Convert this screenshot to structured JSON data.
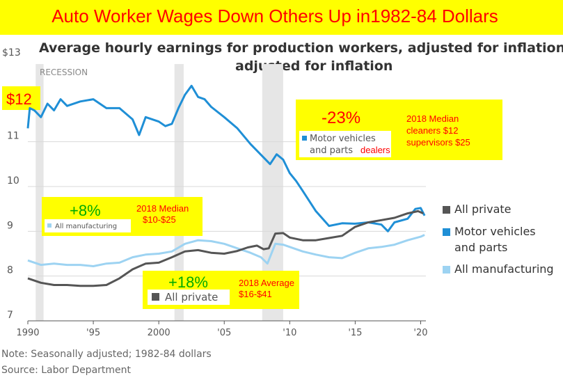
{
  "banner": {
    "title": "Auto Worker Wages Down  Others Up in1982-84 Dollars"
  },
  "chart_data": {
    "type": "line",
    "title": "Average hourly earnings for production workers, adjusted for inflation",
    "subtitle": "adjusted for inflation",
    "ylim": [
      7,
      13
    ],
    "xlim": [
      1990,
      2020.4
    ],
    "y_ticks": [
      7,
      8,
      9,
      10,
      11
    ],
    "y_top_label": "$13",
    "x_ticks": [
      {
        "value": 1990,
        "label": "1990"
      },
      {
        "value": 1995,
        "label": "'95"
      },
      {
        "value": 2000,
        "label": "2000"
      },
      {
        "value": 2005,
        "label": "'05"
      },
      {
        "value": 2010,
        "label": "'10"
      },
      {
        "value": 2015,
        "label": "'15"
      },
      {
        "value": 2020,
        "label": "'20"
      }
    ],
    "recession_label": "RECESSION",
    "recessions": [
      [
        1990.6,
        1991.2
      ],
      [
        2001.2,
        2001.9
      ],
      [
        2007.9,
        2009.5
      ]
    ],
    "series": [
      {
        "name": "All private",
        "color": "#555555",
        "x": [
          1990,
          1991,
          1992,
          1993,
          1994,
          1995,
          1996,
          1997,
          1998,
          1999,
          2000,
          2001,
          2002,
          2003,
          2004,
          2005,
          2006,
          2006.8,
          2007.5,
          2008,
          2008.4,
          2008.9,
          2009.5,
          2010,
          2011,
          2012,
          2013,
          2014,
          2015,
          2016,
          2017,
          2018,
          2019,
          2019.8,
          2020.2
        ],
        "y": [
          7.95,
          7.85,
          7.8,
          7.8,
          7.78,
          7.78,
          7.8,
          7.95,
          8.15,
          8.28,
          8.3,
          8.42,
          8.55,
          8.58,
          8.52,
          8.5,
          8.56,
          8.64,
          8.68,
          8.6,
          8.62,
          8.95,
          8.96,
          8.86,
          8.8,
          8.8,
          8.85,
          8.9,
          9.1,
          9.2,
          9.25,
          9.3,
          9.4,
          9.45,
          9.4
        ]
      },
      {
        "name": "Motor vehicles and parts",
        "color": "#1f8fd6",
        "x": [
          1990,
          1990.15,
          1990.5,
          1991,
          1991.5,
          1992,
          1992.5,
          1993,
          1994,
          1995,
          1996,
          1997,
          1998,
          1998.5,
          1999,
          2000,
          2000.5,
          2001,
          2001.5,
          2002,
          2002.5,
          2003,
          2003.5,
          2004,
          2005,
          2006,
          2007,
          2008,
          2008.5,
          2009,
          2009.5,
          2010,
          2010.5,
          2011,
          2012,
          2013,
          2014,
          2015,
          2016,
          2017,
          2017.5,
          2018,
          2019,
          2019.6,
          2020,
          2020.3
        ],
        "y": [
          11.3,
          11.75,
          11.7,
          11.55,
          11.85,
          11.7,
          11.95,
          11.8,
          11.9,
          11.95,
          11.75,
          11.75,
          11.5,
          11.15,
          11.55,
          11.45,
          11.35,
          11.4,
          11.75,
          12.05,
          12.25,
          12.0,
          11.95,
          11.78,
          11.55,
          11.3,
          10.95,
          10.65,
          10.5,
          10.72,
          10.6,
          10.3,
          10.12,
          9.9,
          9.45,
          9.12,
          9.18,
          9.17,
          9.2,
          9.15,
          9.0,
          9.2,
          9.28,
          9.5,
          9.52,
          9.35
        ]
      },
      {
        "name": "All manufacturing",
        "color": "#9dd3f2",
        "x": [
          1990,
          1991,
          1992,
          1993,
          1994,
          1995,
          1996,
          1997,
          1998,
          1999,
          2000,
          2001,
          2002,
          2003,
          2004,
          2005,
          2006,
          2007,
          2007.8,
          2008.3,
          2008.9,
          2009.5,
          2010,
          2011,
          2012,
          2013,
          2014,
          2015,
          2016,
          2017,
          2018,
          2019,
          2020,
          2020.3
        ],
        "y": [
          8.35,
          8.25,
          8.28,
          8.25,
          8.25,
          8.22,
          8.28,
          8.3,
          8.42,
          8.48,
          8.5,
          8.55,
          8.72,
          8.8,
          8.78,
          8.72,
          8.62,
          8.52,
          8.42,
          8.28,
          8.72,
          8.7,
          8.65,
          8.55,
          8.48,
          8.42,
          8.4,
          8.52,
          8.62,
          8.65,
          8.7,
          8.8,
          8.88,
          8.92
        ]
      }
    ],
    "inline_label_motor_line1": "Motor vehicles",
    "inline_label_motor_line2": "and parts",
    "inline_label_motor_suffix": "dealers",
    "inline_label_manufacturing": "All manufacturing",
    "inline_label_private": "All private"
  },
  "annotations": {
    "start_value": "$12",
    "motor_change": "-23%",
    "motor_median_line1": "2018 Median",
    "motor_median_line2": "cleaners $12",
    "motor_median_line3": "supervisors $25",
    "manufacturing_change": "+8%",
    "manufacturing_median_line1": "2018 Median",
    "manufacturing_median_line2": "$10-$25",
    "private_change": "+18%",
    "private_avg_line1": "2018 Average",
    "private_avg_line2": "$16-$41"
  },
  "legend": {
    "items": [
      {
        "label": "All private",
        "color": "#555555"
      },
      {
        "label": "Motor vehicles",
        "label2": "and parts",
        "color": "#1f8fd6"
      },
      {
        "label": "All manufacturing",
        "color": "#9dd3f2"
      }
    ]
  },
  "footer": {
    "note": "Note: Seasonally adjusted; 1982-84 dollars",
    "source": "Source: Labor Department"
  },
  "colors": {
    "banner_bg": "#ffff00",
    "banner_text": "#ff0000",
    "highlight": "#ffff00",
    "green_text": "#00aa00",
    "red_text": "#ff0000",
    "recession_band": "#e6e6e6"
  }
}
